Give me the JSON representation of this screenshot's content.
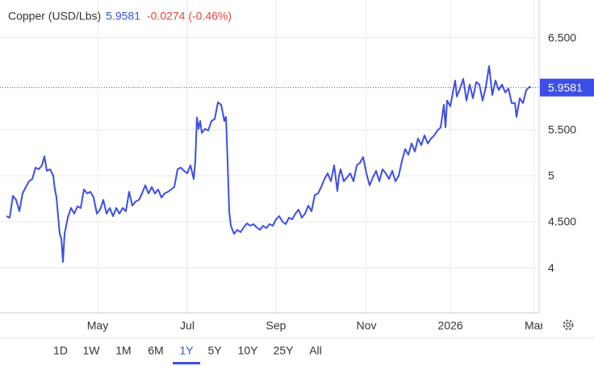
{
  "chart_data": {
    "type": "line",
    "title": "Copper (USD/Lbs)",
    "price": "5.9581",
    "change": "-0.0274 (-0.46%)",
    "color": "#3d4ee6",
    "grid": true,
    "xlim": [
      0,
      660
    ],
    "ylim": [
      3.51,
      6.91
    ],
    "yticks": [
      {
        "value": 6.5,
        "label": "6.500"
      },
      {
        "value": 5.5,
        "label": "5.500"
      },
      5,
      {
        "value": 4.5,
        "label": "4.500"
      },
      4
    ],
    "xticks": [
      {
        "value": 113,
        "label": "May"
      },
      {
        "value": 224,
        "label": "Jul"
      },
      {
        "value": 334,
        "label": "Sep"
      },
      {
        "value": 446,
        "label": "Nov"
      },
      {
        "value": 550,
        "label": "2026"
      },
      {
        "value": 654,
        "label": "Mar"
      }
    ],
    "range_buttons": [
      "1D",
      "1W",
      "1M",
      "6M",
      "1Y",
      "5Y",
      "10Y",
      "25Y",
      "All"
    ],
    "selected_range_index": 4,
    "x": [
      0,
      4,
      8,
      12,
      16,
      20,
      24,
      28,
      32,
      36,
      40,
      44,
      47,
      50,
      54,
      58,
      60,
      62,
      64,
      66,
      68,
      70,
      72,
      76,
      80,
      84,
      88,
      92,
      96,
      100,
      104,
      108,
      112,
      116,
      120,
      124,
      128,
      132,
      136,
      140,
      144,
      148,
      152,
      156,
      160,
      164,
      168,
      172,
      176,
      180,
      184,
      188,
      192,
      196,
      200,
      204,
      208,
      212,
      216,
      220,
      224,
      228,
      232,
      234,
      236,
      238,
      240,
      242,
      246,
      250,
      254,
      258,
      262,
      266,
      270,
      272,
      274,
      276,
      278,
      282,
      286,
      290,
      294,
      298,
      302,
      306,
      310,
      314,
      318,
      322,
      326,
      330,
      334,
      338,
      342,
      346,
      350,
      354,
      358,
      362,
      366,
      370,
      374,
      378,
      382,
      386,
      390,
      394,
      398,
      402,
      406,
      410,
      412,
      414,
      418,
      422,
      426,
      430,
      434,
      438,
      442,
      446,
      450,
      454,
      458,
      462,
      466,
      470,
      474,
      478,
      482,
      486,
      490,
      494,
      498,
      502,
      506,
      510,
      514,
      518,
      522,
      526,
      530,
      534,
      538,
      542,
      544,
      546,
      550,
      554,
      556,
      558,
      562,
      566,
      570,
      574,
      578,
      582,
      586,
      590,
      594,
      598,
      602,
      606,
      610,
      614,
      618,
      622,
      626,
      630,
      632,
      636,
      640,
      644,
      648,
      650
    ],
    "values": [
      4.561,
      4.544,
      4.781,
      4.737,
      4.614,
      4.807,
      4.877,
      4.939,
      4.965,
      5.088,
      5.07,
      5.114,
      5.211,
      5.053,
      5.07,
      5.0,
      4.851,
      4.763,
      4.561,
      4.368,
      4.316,
      4.061,
      4.368,
      4.544,
      4.649,
      4.588,
      4.667,
      4.649,
      4.851,
      4.807,
      4.825,
      4.763,
      4.588,
      4.632,
      4.737,
      4.588,
      4.649,
      4.561,
      4.649,
      4.588,
      4.649,
      4.614,
      4.825,
      4.675,
      4.719,
      4.737,
      4.807,
      4.895,
      4.807,
      4.877,
      4.807,
      4.851,
      4.763,
      4.807,
      4.825,
      4.851,
      4.877,
      5.07,
      5.088,
      5.053,
      5.026,
      5.114,
      4.965,
      5.158,
      5.632,
      5.509,
      5.596,
      5.465,
      5.509,
      5.491,
      5.596,
      5.614,
      5.798,
      5.772,
      5.596,
      5.64,
      5.158,
      4.614,
      4.456,
      4.368,
      4.412,
      4.386,
      4.439,
      4.482,
      4.456,
      4.474,
      4.439,
      4.412,
      4.456,
      4.43,
      4.474,
      4.456,
      4.526,
      4.561,
      4.5,
      4.474,
      4.544,
      4.526,
      4.588,
      4.632,
      4.544,
      4.588,
      4.675,
      4.614,
      4.789,
      4.807,
      4.877,
      4.965,
      5.026,
      4.939,
      5.114,
      4.833,
      5.0,
      5.07,
      4.939,
      4.982,
      5.026,
      4.939,
      5.114,
      5.14,
      5.202,
      5.026,
      4.895,
      4.982,
      5.053,
      4.939,
      5.07,
      5.026,
      4.965,
      5.053,
      4.939,
      5.0,
      5.158,
      5.289,
      5.228,
      5.351,
      5.263,
      5.404,
      5.333,
      5.439,
      5.351,
      5.404,
      5.439,
      5.491,
      5.526,
      5.772,
      5.526,
      5.816,
      5.754,
      5.947,
      6.035,
      5.86,
      5.947,
      6.053,
      5.816,
      5.991,
      5.842,
      6.018,
      5.991,
      5.816,
      5.965,
      6.193,
      5.877,
      6.035,
      5.93,
      5.991,
      5.904,
      5.947,
      5.789,
      5.789,
      5.64,
      5.842,
      5.789,
      5.93,
      5.965,
      5.9581
    ]
  }
}
